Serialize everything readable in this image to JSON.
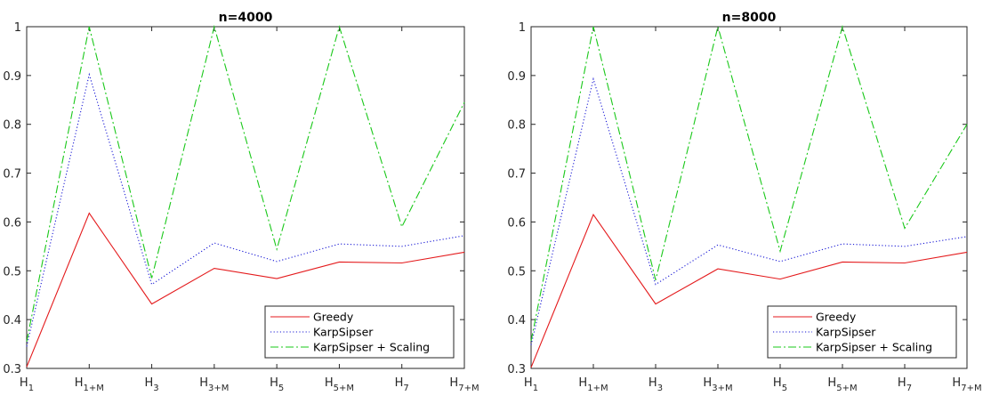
{
  "chart_data": [
    {
      "type": "line",
      "title": "n=4000",
      "xlabel": "",
      "ylabel": "",
      "categories": [
        {
          "base": "H",
          "sub": "1"
        },
        {
          "base": "H",
          "sub": "1+M"
        },
        {
          "base": "H",
          "sub": "3"
        },
        {
          "base": "H",
          "sub": "3+M"
        },
        {
          "base": "H",
          "sub": "5"
        },
        {
          "base": "H",
          "sub": "5+M"
        },
        {
          "base": "H",
          "sub": "7"
        },
        {
          "base": "H",
          "sub": "7+M"
        }
      ],
      "ylim": [
        0.3,
        1
      ],
      "yticks": [
        "0.3",
        "0.4",
        "0.5",
        "0.6",
        "0.7",
        "0.8",
        "0.9",
        "1"
      ],
      "grid": false,
      "legend_position": "bottom-right",
      "series": [
        {
          "name": "Greedy",
          "color": "#e41a1c",
          "style": "solid",
          "values": [
            0.303,
            0.618,
            0.432,
            0.505,
            0.484,
            0.518,
            0.516,
            0.538
          ]
        },
        {
          "name": "KarpSipser",
          "color": "#1a1ad6",
          "style": "dotted",
          "values": [
            0.345,
            0.902,
            0.472,
            0.557,
            0.519,
            0.555,
            0.55,
            0.572
          ]
        },
        {
          "name": "KarpSipser + Scaling",
          "color": "#19c819",
          "style": "dashdot",
          "values": [
            0.355,
            1.0,
            0.485,
            1.0,
            0.544,
            1.0,
            0.59,
            0.845
          ]
        }
      ]
    },
    {
      "type": "line",
      "title": "n=8000",
      "xlabel": "",
      "ylabel": "",
      "categories": [
        {
          "base": "H",
          "sub": "1"
        },
        {
          "base": "H",
          "sub": "1+M"
        },
        {
          "base": "H",
          "sub": "3"
        },
        {
          "base": "H",
          "sub": "3+M"
        },
        {
          "base": "H",
          "sub": "5"
        },
        {
          "base": "H",
          "sub": "5+M"
        },
        {
          "base": "H",
          "sub": "7"
        },
        {
          "base": "H",
          "sub": "7+M"
        }
      ],
      "ylim": [
        0.3,
        1
      ],
      "yticks": [
        "0.3",
        "0.4",
        "0.5",
        "0.6",
        "0.7",
        "0.8",
        "0.9",
        "1"
      ],
      "grid": false,
      "legend_position": "bottom-right",
      "series": [
        {
          "name": "Greedy",
          "color": "#e41a1c",
          "style": "solid",
          "values": [
            0.302,
            0.615,
            0.432,
            0.504,
            0.483,
            0.518,
            0.516,
            0.538
          ]
        },
        {
          "name": "KarpSipser",
          "color": "#1a1ad6",
          "style": "dotted",
          "values": [
            0.348,
            0.893,
            0.472,
            0.553,
            0.519,
            0.555,
            0.55,
            0.57
          ]
        },
        {
          "name": "KarpSipser + Scaling",
          "color": "#19c819",
          "style": "dashdot",
          "values": [
            0.356,
            1.0,
            0.481,
            1.0,
            0.54,
            1.0,
            0.587,
            0.8
          ]
        }
      ]
    }
  ]
}
